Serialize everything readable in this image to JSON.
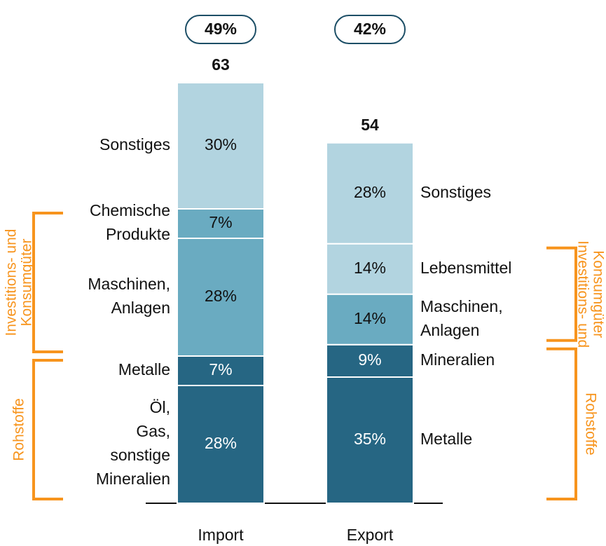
{
  "chart_data": {
    "type": "stacked-bar",
    "bars": [
      {
        "name": "Import",
        "total": 63,
        "share": 49,
        "share_label": "49%",
        "segments": [
          {
            "label": [
              "Öl,",
              "Gas,",
              "sonstige",
              "Mineralien"
            ],
            "value": 28,
            "value_label": "28%",
            "color": "#266683"
          },
          {
            "label": [
              "Metalle"
            ],
            "value": 7,
            "value_label": "7%",
            "color": "#266683"
          },
          {
            "label": [
              "Maschinen,",
              "Anlagen"
            ],
            "value": 28,
            "value_label": "28%",
            "color": "#6aabc1"
          },
          {
            "label": [
              "Chemische",
              "Produkte"
            ],
            "value": 7,
            "value_label": "7%",
            "color": "#6aabc1"
          },
          {
            "label": [
              "Sonstiges"
            ],
            "value": 30,
            "value_label": "30%",
            "color": "#b2d4e0"
          }
        ],
        "groups": [
          {
            "label": [
              "Rohstoffe"
            ],
            "from": 0,
            "to": 1
          },
          {
            "label": [
              "Investitions- und",
              "Konsumgüter"
            ],
            "from": 2,
            "to": 3
          }
        ]
      },
      {
        "name": "Export",
        "total": 54,
        "share": 42,
        "share_label": "42%",
        "segments": [
          {
            "label": [
              "Metalle"
            ],
            "value": 35,
            "value_label": "35%",
            "color": "#266683"
          },
          {
            "label": [
              "Mineralien"
            ],
            "value": 9,
            "value_label": "9%",
            "color": "#266683"
          },
          {
            "label": [
              "Maschinen,",
              "Anlagen"
            ],
            "value": 14,
            "value_label": "14%",
            "color": "#6aabc1"
          },
          {
            "label": [
              "Lebensmittel"
            ],
            "value": 14,
            "value_label": "14%",
            "color": "#b2d4e0"
          },
          {
            "label": [
              "Sonstiges"
            ],
            "value": 28,
            "value_label": "28%",
            "color": "#b2d4e0"
          }
        ],
        "groups": [
          {
            "label": [
              "Rohstoffe"
            ],
            "from": 0,
            "to": 1
          },
          {
            "label": [
              "Investitions- und",
              "Konsumgüter"
            ],
            "from": 2,
            "to": 3
          }
        ]
      }
    ],
    "bracket_color": "#f7941d"
  }
}
